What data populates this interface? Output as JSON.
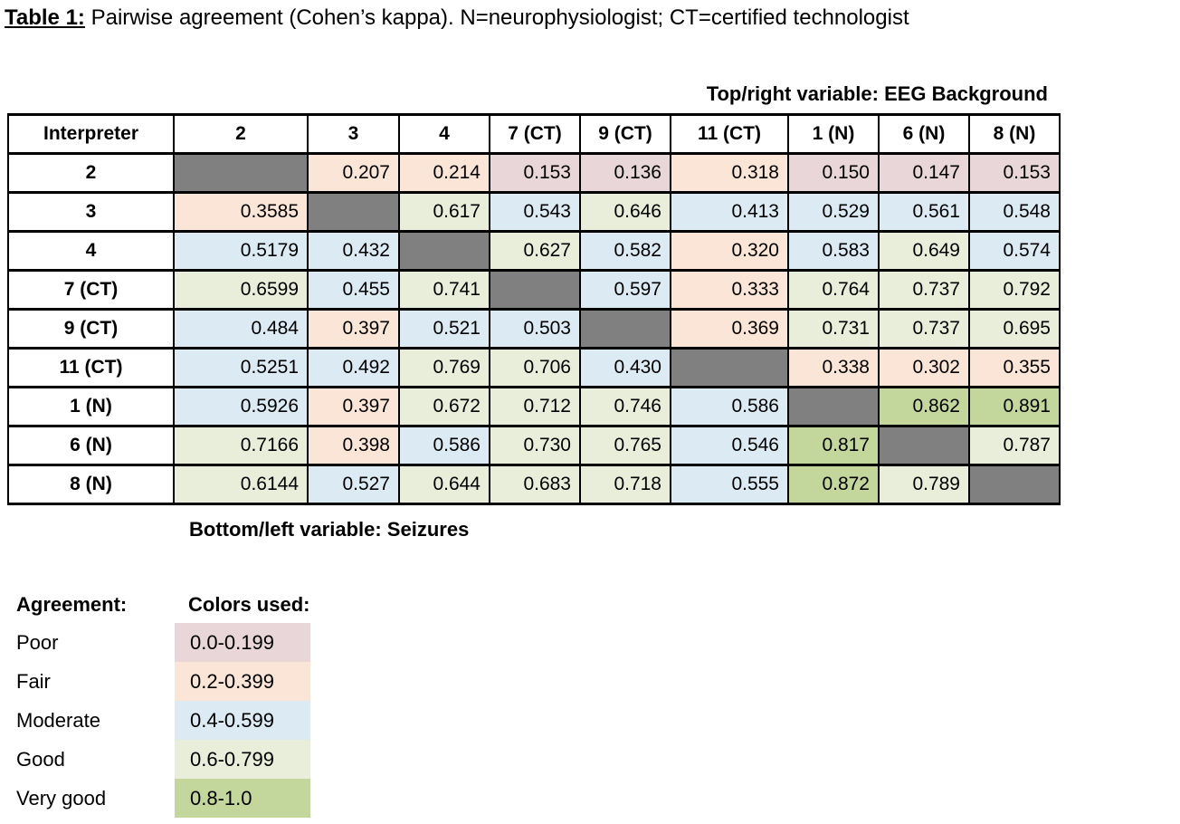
{
  "title": {
    "prefix": "Table 1:",
    "rest": " Pairwise agreement (Cohen’s kappa). N=neurophysiologist; CT=certified technologist"
  },
  "notes": {
    "top_right": "Top/right variable: EEG Background",
    "bottom_left": "Bottom/left variable: Seizures"
  },
  "table": {
    "header": [
      "Interpreter",
      "2",
      "3",
      "4",
      "7 (CT)",
      "9 (CT)",
      "11 (CT)",
      "1 (N)",
      "6 (N)",
      "8 (N)"
    ],
    "rows": [
      {
        "label": "2",
        "values": [
          null,
          "0.207",
          "0.214",
          "0.153",
          "0.136",
          "0.318",
          "0.150",
          "0.147",
          "0.153"
        ]
      },
      {
        "label": "3",
        "values": [
          "0.3585",
          null,
          "0.617",
          "0.543",
          "0.646",
          "0.413",
          "0.529",
          "0.561",
          "0.548"
        ]
      },
      {
        "label": "4",
        "values": [
          "0.5179",
          "0.432",
          null,
          "0.627",
          "0.582",
          "0.320",
          "0.583",
          "0.649",
          "0.574"
        ]
      },
      {
        "label": "7 (CT)",
        "values": [
          "0.6599",
          "0.455",
          "0.741",
          null,
          "0.597",
          "0.333",
          "0.764",
          "0.737",
          "0.792"
        ]
      },
      {
        "label": "9 (CT)",
        "values": [
          "0.484",
          "0.397",
          "0.521",
          "0.503",
          null,
          "0.369",
          "0.731",
          "0.737",
          "0.695"
        ]
      },
      {
        "label": "11 (CT)",
        "values": [
          "0.5251",
          "0.492",
          "0.769",
          "0.706",
          "0.430",
          null,
          "0.338",
          "0.302",
          "0.355"
        ]
      },
      {
        "label": "1 (N)",
        "values": [
          "0.5926",
          "0.397",
          "0.672",
          "0.712",
          "0.746",
          "0.586",
          null,
          "0.862",
          "0.891"
        ]
      },
      {
        "label": "6 (N)",
        "values": [
          "0.7166",
          "0.398",
          "0.586",
          "0.730",
          "0.765",
          "0.546",
          "0.817",
          null,
          "0.787"
        ]
      },
      {
        "label": "8 (N)",
        "values": [
          "0.6144",
          "0.527",
          "0.644",
          "0.683",
          "0.718",
          "0.555",
          "0.872",
          "0.789",
          null
        ]
      }
    ]
  },
  "legend": {
    "agreement_label": "Agreement:",
    "colors_label": "Colors used:",
    "items": [
      {
        "name": "Poor",
        "range": "0.0-0.199",
        "color": "#e8d6d9"
      },
      {
        "name": "Fair",
        "range": "0.2-0.399",
        "color": "#fbe5d6"
      },
      {
        "name": "Moderate",
        "range": "0.4-0.599",
        "color": "#dbeaf3"
      },
      {
        "name": "Good",
        "range": "0.6-0.799",
        "color": "#e9eeda"
      },
      {
        "name": "Very good",
        "range": "0.8-1.0",
        "color": "#c3d69b"
      }
    ]
  },
  "colors": {
    "diagonal_fill": "#808080",
    "table_border": "#000000",
    "text": "#000000"
  }
}
